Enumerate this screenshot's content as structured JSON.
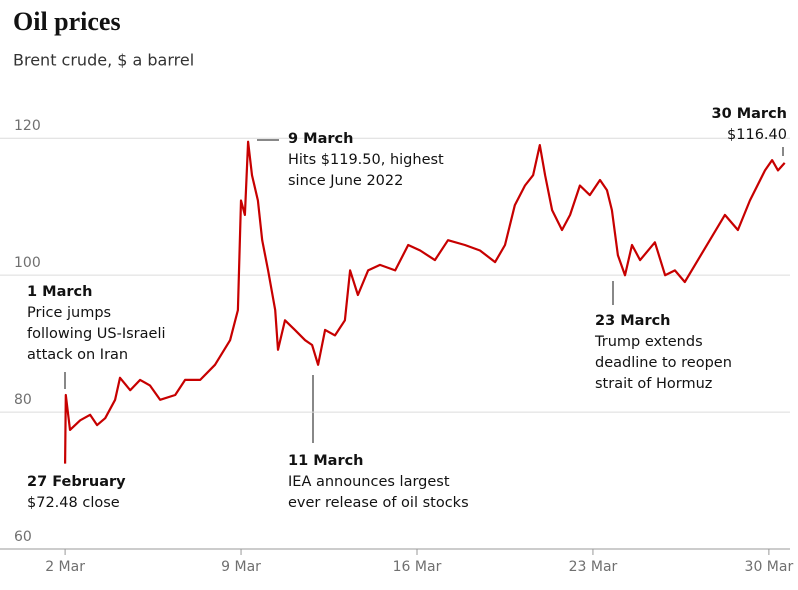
{
  "chart_data": {
    "type": "line",
    "title": "Oil prices",
    "subtitle": "Brent crude, $ a barrel",
    "color": "#c70000",
    "grid": true,
    "ylim": [
      60,
      125
    ],
    "yticks": [
      60,
      80,
      100,
      120
    ],
    "xlim": [
      -1.85,
      20.6
    ],
    "xticks": [
      {
        "value": 0,
        "label": "2 Mar"
      },
      {
        "value": 5,
        "label": "9 Mar"
      },
      {
        "value": 10,
        "label": "16 Mar"
      },
      {
        "value": 15,
        "label": "23 Mar"
      },
      {
        "value": 20,
        "label": "30 Mar"
      }
    ],
    "x": [
      0,
      0.02,
      0.14,
      0.43,
      0.71,
      0.91,
      1.14,
      1.42,
      1.56,
      1.85,
      2.13,
      2.41,
      2.7,
      3.13,
      3.41,
      3.84,
      4.26,
      4.69,
      4.91,
      5.0,
      5.11,
      5.2,
      5.31,
      5.48,
      5.6,
      5.77,
      5.97,
      6.05,
      6.25,
      6.53,
      6.82,
      7.02,
      7.19,
      7.39,
      7.67,
      7.95,
      8.1,
      8.32,
      8.61,
      8.95,
      9.38,
      9.75,
      10.09,
      10.51,
      10.88,
      11.36,
      11.79,
      12.22,
      12.5,
      12.78,
      13.07,
      13.3,
      13.49,
      13.64,
      13.84,
      14.12,
      14.35,
      14.63,
      14.91,
      15.2,
      15.4,
      15.54,
      15.71,
      15.91,
      16.11,
      16.34,
      16.76,
      17.05,
      17.33,
      17.61,
      17.9,
      18.32,
      18.75,
      19.12,
      19.46,
      19.89,
      20.09,
      20.26,
      20.45
    ],
    "values": [
      72.48,
      82.5,
      77.4,
      78.8,
      79.6,
      78.1,
      79.1,
      81.8,
      85.0,
      83.2,
      84.7,
      83.9,
      81.8,
      82.5,
      84.7,
      84.7,
      86.9,
      90.5,
      94.9,
      110.9,
      108.8,
      119.5,
      114.6,
      110.9,
      105.1,
      100.7,
      94.9,
      89.1,
      93.4,
      92.0,
      90.5,
      89.8,
      86.9,
      92.0,
      91.2,
      93.4,
      100.7,
      97.1,
      100.7,
      101.5,
      100.7,
      104.4,
      103.6,
      102.2,
      105.1,
      104.4,
      103.6,
      101.9,
      104.4,
      110.2,
      113.1,
      114.6,
      119.0,
      114.6,
      109.5,
      106.6,
      108.8,
      113.1,
      111.7,
      113.9,
      112.4,
      109.5,
      102.9,
      100.0,
      104.4,
      102.2,
      104.8,
      100.0,
      100.7,
      99.0,
      101.5,
      105.1,
      108.8,
      106.6,
      110.9,
      115.3,
      116.8,
      115.3,
      116.4
    ],
    "annotations": [
      {
        "title": "1 March",
        "lines": [
          "Price jumps",
          "following US-Israeli",
          "attack on Iran"
        ]
      },
      {
        "title": "9 March",
        "lines": [
          "Hits $119.50, highest",
          "since June 2022"
        ]
      },
      {
        "title": "11 March",
        "lines": [
          "IEA announces largest",
          "ever release of oil stocks"
        ]
      },
      {
        "title": "23 March",
        "lines": [
          "Trump extends",
          "deadline to reopen",
          "strait of Hormuz"
        ]
      },
      {
        "title": "27 February",
        "lines": [
          "$72.48 close"
        ]
      },
      {
        "title": "30 March",
        "lines": [
          "$116.40"
        ]
      }
    ]
  }
}
